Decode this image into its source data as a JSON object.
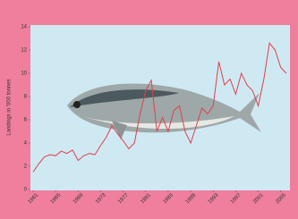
{
  "chart_data": {
    "type": "line",
    "y_label": "Landings in '000 tonnes",
    "x": [
      1961,
      1962,
      1963,
      1964,
      1965,
      1966,
      1967,
      1968,
      1969,
      1970,
      1971,
      1972,
      1973,
      1974,
      1975,
      1976,
      1977,
      1978,
      1979,
      1980,
      1981,
      1982,
      1983,
      1984,
      1985,
      1986,
      1987,
      1988,
      1989,
      1990,
      1991,
      1992,
      1993,
      1994,
      1995,
      1996,
      1997,
      1998,
      1999,
      2000,
      2001,
      2002,
      2003,
      2004,
      2005,
      2006
    ],
    "series": [
      {
        "color": "#e0404a",
        "values": [
          1.5,
          2.2,
          2.8,
          3.0,
          2.9,
          3.3,
          3.1,
          3.4,
          2.5,
          2.9,
          3.1,
          3.0,
          3.8,
          4.5,
          5.5,
          4.8,
          4.2,
          3.5,
          4.0,
          6.5,
          8.5,
          9.4,
          5.0,
          6.2,
          5.0,
          6.8,
          7.2,
          5.0,
          4.0,
          5.5,
          7.0,
          6.5,
          7.2,
          11.0,
          9.0,
          9.5,
          8.2,
          10.0,
          9.0,
          8.5,
          7.2,
          9.5,
          12.6,
          12.0,
          10.5,
          10.0
        ]
      }
    ],
    "xlim": [
      1961,
      2006
    ],
    "xticks": [
      1961,
      1965,
      1969,
      1973,
      1977,
      1981,
      1985,
      1989,
      1993,
      1997,
      2001,
      2005
    ],
    "ylim": [
      0,
      14
    ],
    "yticks": [
      0,
      2,
      4,
      6,
      8,
      10,
      12,
      14
    ]
  }
}
